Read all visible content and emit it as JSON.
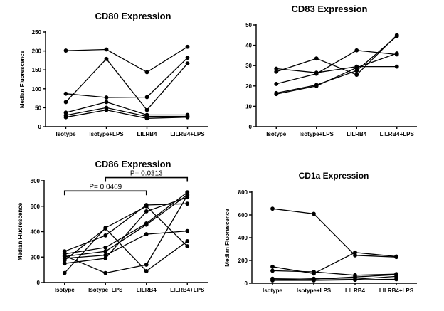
{
  "chart_data": [
    {
      "type": "line",
      "title": "CD80 Expression",
      "xlabel": "",
      "ylabel": "Median Fluorescence",
      "categories": [
        "Isotype",
        "Isotype+LPS",
        "LILRB4",
        "LILRB4+LPS"
      ],
      "ylim": [
        0,
        250
      ],
      "yticks": [
        0,
        50,
        100,
        150,
        200,
        250
      ],
      "series": [
        {
          "values": [
            201,
            204,
            144,
            211
          ]
        },
        {
          "values": [
            65,
            179,
            44,
            167
          ]
        },
        {
          "values": [
            87,
            77,
            78,
            182
          ]
        },
        {
          "values": [
            37,
            65,
            31,
            31
          ]
        },
        {
          "values": [
            30,
            50,
            27,
            27
          ]
        },
        {
          "values": [
            25,
            44,
            22,
            25
          ]
        }
      ],
      "annotations": []
    },
    {
      "type": "line",
      "title": "CD83 Expression",
      "xlabel": "",
      "ylabel": "",
      "categories": [
        "Isotype",
        "Isotype+LPS",
        "LILRB4",
        "LILRB4+LPS"
      ],
      "ylim": [
        0,
        50
      ],
      "yticks": [
        0,
        10,
        20,
        30,
        40,
        50
      ],
      "series": [
        {
          "values": [
            28.5,
            26.5,
            29.5,
            29.5
          ]
        },
        {
          "values": [
            27,
            33.5,
            25.5,
            45
          ]
        },
        {
          "values": [
            21,
            26,
            37.5,
            35.5
          ]
        },
        {
          "values": [
            16.5,
            20.5,
            27.5,
            44.5
          ]
        },
        {
          "values": [
            16,
            20,
            29,
            36
          ]
        }
      ],
      "annotations": []
    },
    {
      "type": "line",
      "title": "CD86 Expression",
      "xlabel": "",
      "ylabel": "Median Fluorescence",
      "categories": [
        "Isotype",
        "Isotype+LPS",
        "LILRB4",
        "LILRB4+LPS"
      ],
      "ylim": [
        0,
        800
      ],
      "yticks": [
        0,
        200,
        400,
        600,
        800
      ],
      "series": [
        {
          "values": [
            245,
            370,
            610,
            620
          ]
        },
        {
          "values": [
            225,
            275,
            465,
            710
          ]
        },
        {
          "values": [
            205,
            245,
            455,
            690
          ]
        },
        {
          "values": [
            190,
            215,
            380,
            405
          ]
        },
        {
          "values": [
            175,
            425,
            90,
            325
          ]
        },
        {
          "values": [
            150,
            190,
            560,
            670
          ]
        },
        {
          "values": [
            75,
            430,
            600,
            285
          ]
        },
        {
          "values": [
            210,
            75,
            140,
            685
          ]
        }
      ],
      "annotations": [
        {
          "text": "P= 0.0469",
          "from": "Isotype",
          "to": "LILRB4",
          "y": 720
        },
        {
          "text": "P= 0.0313",
          "from": "Isotype+LPS",
          "to": "LILRB4+LPS",
          "y": 825
        }
      ]
    },
    {
      "type": "line",
      "title": "CD1a Expression",
      "xlabel": "",
      "ylabel": "Median Fluorescence",
      "categories": [
        "Isotype",
        "Isotype+LPS",
        "LILRB4",
        "LILRB4+LPS"
      ],
      "ylim": [
        0,
        800
      ],
      "yticks": [
        0,
        200,
        400,
        600,
        800
      ],
      "series": [
        {
          "values": [
            655,
            610,
            245,
            230
          ]
        },
        {
          "values": [
            145,
            85,
            270,
            235
          ]
        },
        {
          "values": [
            110,
            100,
            70,
            80
          ]
        },
        {
          "values": [
            40,
            35,
            55,
            75
          ]
        },
        {
          "values": [
            30,
            40,
            35,
            60
          ]
        },
        {
          "values": [
            25,
            25,
            30,
            35
          ]
        }
      ],
      "annotations": []
    }
  ]
}
